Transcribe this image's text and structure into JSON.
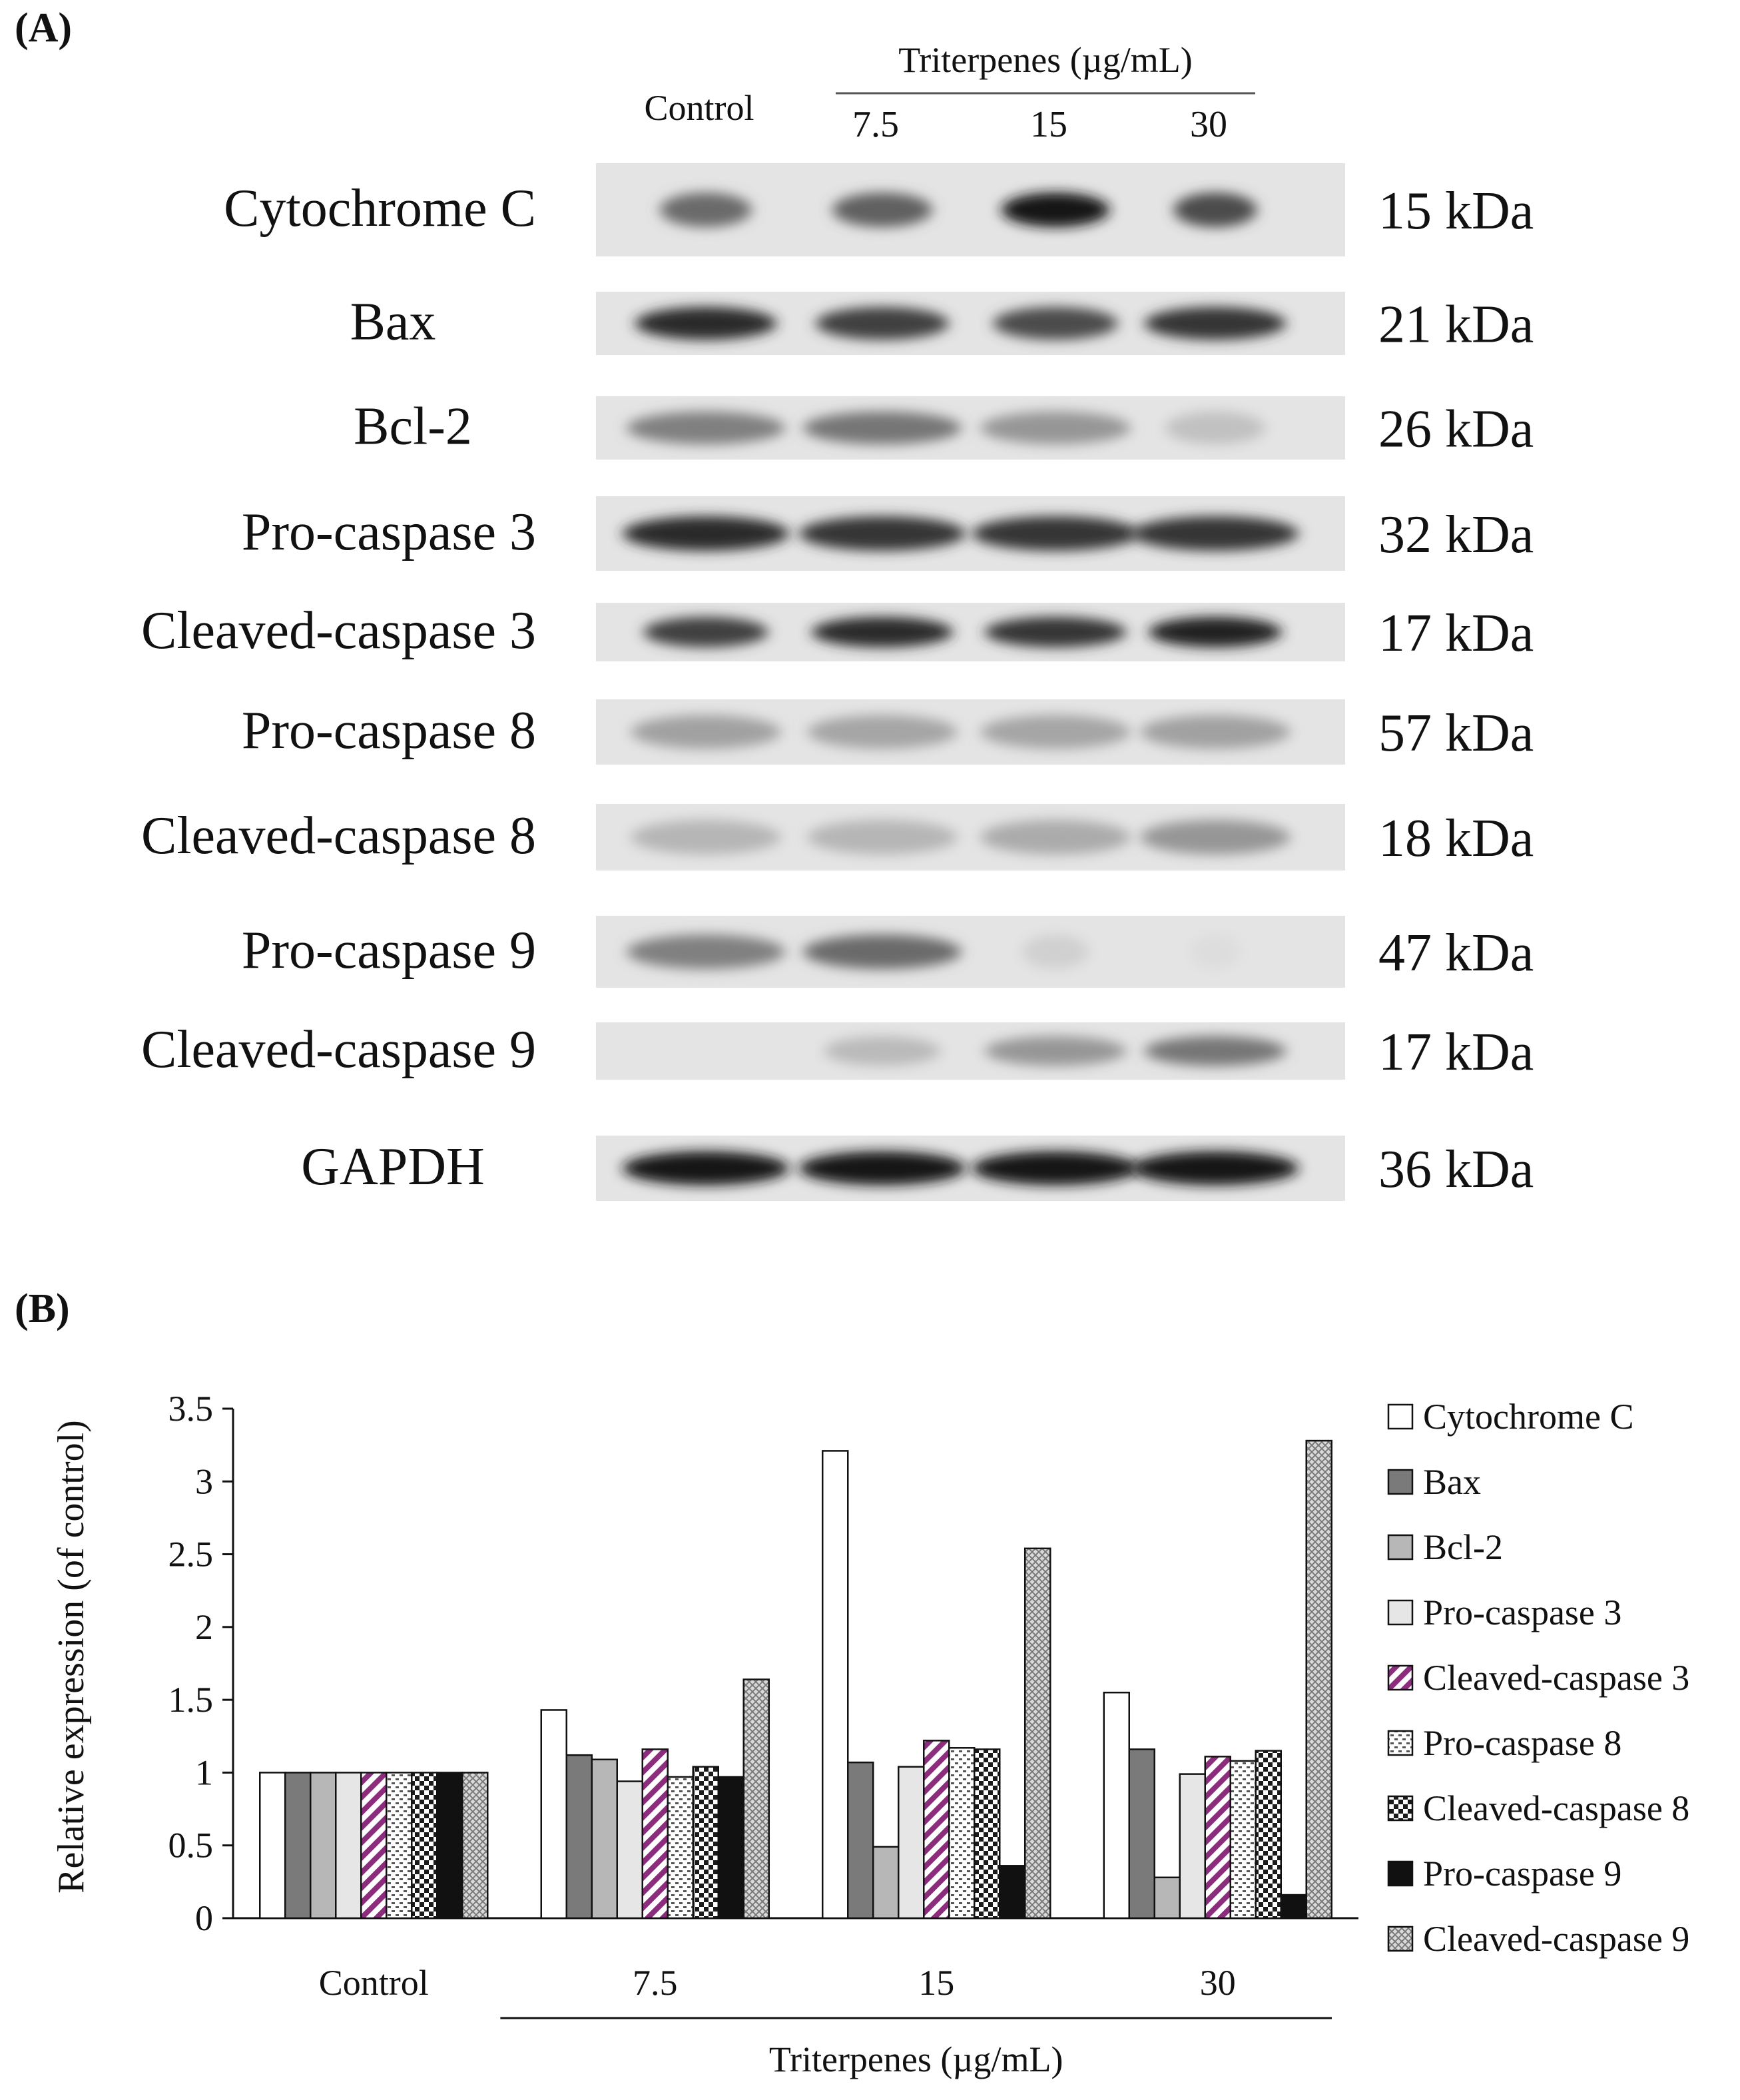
{
  "panel_a": {
    "label": "(A)",
    "treatment_header": "Triterpenes (µg/mL)",
    "lanes": [
      "Control",
      "7.5",
      "15",
      "30"
    ],
    "blots": [
      {
        "protein": "Cytochrome C",
        "mw": "15 kDa",
        "intensity": [
          0.55,
          0.6,
          0.95,
          0.7
        ],
        "spread": [
          0.55,
          0.6,
          0.65,
          0.5
        ]
      },
      {
        "protein": "Bax",
        "mw": "21 kDa",
        "intensity": [
          0.85,
          0.75,
          0.7,
          0.8
        ],
        "spread": [
          0.85,
          0.8,
          0.75,
          0.85
        ]
      },
      {
        "protein": "Bcl-2",
        "mw": "26 kDa",
        "intensity": [
          0.45,
          0.5,
          0.35,
          0.15
        ],
        "spread": [
          0.95,
          0.95,
          0.9,
          0.6
        ]
      },
      {
        "protein": "Pro-caspase 3",
        "mw": "32 kDa",
        "intensity": [
          0.85,
          0.8,
          0.8,
          0.8
        ],
        "spread": [
          1.0,
          1.0,
          1.0,
          1.0
        ]
      },
      {
        "protein": "Cleaved-caspase 3",
        "mw": "17 kDa",
        "intensity": [
          0.75,
          0.85,
          0.8,
          0.9
        ],
        "spread": [
          0.75,
          0.85,
          0.85,
          0.8
        ]
      },
      {
        "protein": "Pro-caspase 8",
        "mw": "57 kDa",
        "intensity": [
          0.3,
          0.28,
          0.28,
          0.3
        ],
        "spread": [
          0.9,
          0.9,
          0.9,
          0.9
        ]
      },
      {
        "protein": "Cleaved-caspase 8",
        "mw": "18 kDa",
        "intensity": [
          0.2,
          0.2,
          0.25,
          0.35
        ],
        "spread": [
          0.9,
          0.9,
          0.9,
          0.9
        ]
      },
      {
        "protein": "Pro-caspase 9",
        "mw": "47 kDa",
        "intensity": [
          0.45,
          0.55,
          0.08,
          0.02
        ],
        "spread": [
          0.95,
          0.95,
          0.4,
          0.3
        ]
      },
      {
        "protein": "Cleaved-caspase 9",
        "mw": "17 kDa",
        "intensity": [
          0.0,
          0.18,
          0.35,
          0.5
        ],
        "spread": [
          0.5,
          0.7,
          0.85,
          0.85
        ]
      },
      {
        "protein": "GAPDH",
        "mw": "36 kDa",
        "intensity": [
          0.95,
          0.95,
          0.95,
          0.95
        ],
        "spread": [
          1.0,
          1.0,
          1.0,
          1.0
        ]
      }
    ]
  },
  "panel_b": {
    "label": "(B)"
  },
  "chart_data": {
    "type": "bar",
    "categories": [
      "Control",
      "7.5",
      "15",
      "30"
    ],
    "category_group_label": "Triterpenes (µg/mL)",
    "ylabel": "Relative expression (of control)",
    "xlabel": "Triterpenes (µg/mL)",
    "ylim": [
      0,
      3.5
    ],
    "yticks": [
      0,
      0.5,
      1,
      1.5,
      2,
      2.5,
      3,
      3.5
    ],
    "ytick_labels": [
      "0",
      "0.5",
      "1",
      "1.5",
      "2",
      "2.5",
      "3",
      "3.5"
    ],
    "legend_position": "right",
    "grid": false,
    "series": [
      {
        "name": "Cytochrome C",
        "values": [
          1.0,
          1.43,
          3.21,
          1.55
        ],
        "fill": "#ffffff",
        "pattern": "solid"
      },
      {
        "name": "Bax",
        "values": [
          1.0,
          1.12,
          1.07,
          1.16
        ],
        "fill": "#7a7a7a",
        "pattern": "solid"
      },
      {
        "name": "Bcl-2",
        "values": [
          1.0,
          1.09,
          0.49,
          0.28
        ],
        "fill": "#b7b7b7",
        "pattern": "solid"
      },
      {
        "name": "Pro-caspase 3",
        "values": [
          1.0,
          0.94,
          1.04,
          0.99
        ],
        "fill": "#e6e6e6",
        "pattern": "solid"
      },
      {
        "name": "Cleaved-caspase 3",
        "values": [
          1.0,
          1.16,
          1.22,
          1.11
        ],
        "fill": "#8b2c7c",
        "pattern": "diag"
      },
      {
        "name": "Pro-caspase 8",
        "values": [
          1.0,
          0.97,
          1.17,
          1.08
        ],
        "fill": "#444444",
        "pattern": "dots"
      },
      {
        "name": "Cleaved-caspase 8",
        "values": [
          1.0,
          1.04,
          1.16,
          1.15
        ],
        "fill": "#222222",
        "pattern": "checker"
      },
      {
        "name": "Pro-caspase 9",
        "values": [
          1.0,
          0.97,
          0.36,
          0.16
        ],
        "fill": "#111111",
        "pattern": "solid"
      },
      {
        "name": "Cleaved-caspase 9",
        "values": [
          1.0,
          1.64,
          2.54,
          3.28
        ],
        "fill": "#555555",
        "pattern": "cross"
      }
    ]
  }
}
